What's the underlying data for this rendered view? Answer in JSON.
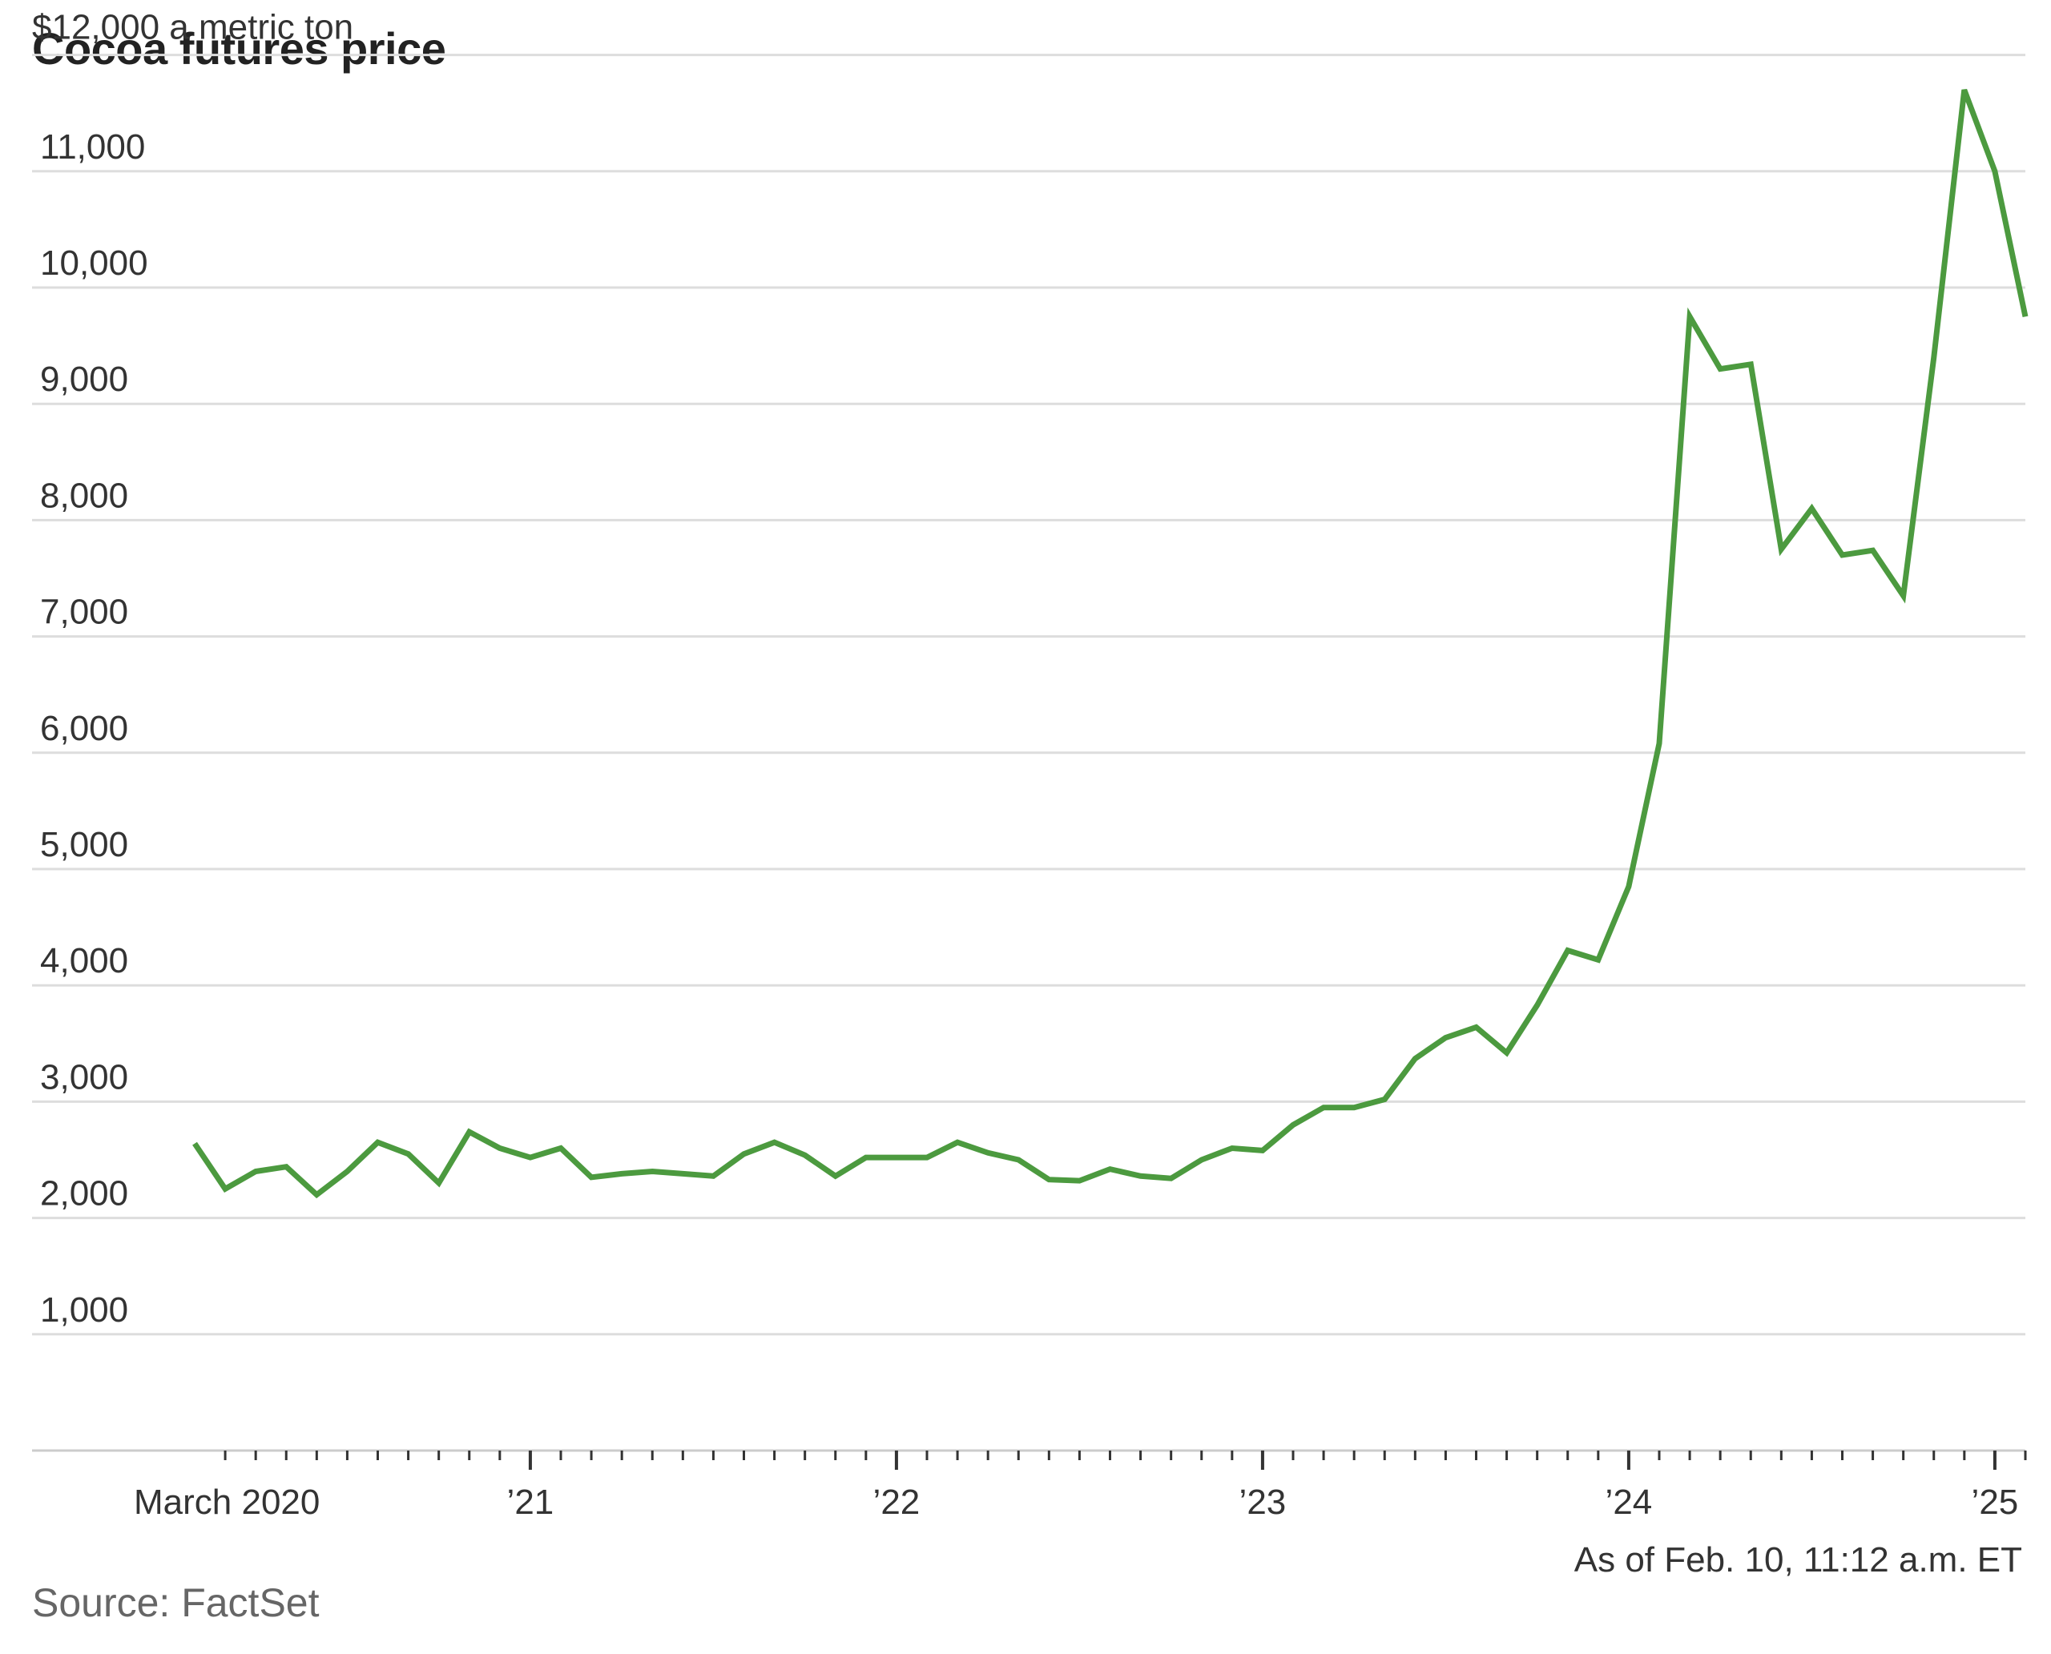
{
  "chart_data": {
    "type": "line",
    "title": "Cocoa futures price",
    "ylabel_unit_text": "$12,000 a metric ton",
    "note": "As of Feb. 10, 11:12 a.m. ET",
    "source": "Source: FactSet",
    "ylim": [
      0,
      12000
    ],
    "y_ticks": [
      {
        "value": 12000,
        "label": ""
      },
      {
        "value": 11000,
        "label": "11,000"
      },
      {
        "value": 10000,
        "label": "10,000"
      },
      {
        "value": 9000,
        "label": "9,000"
      },
      {
        "value": 8000,
        "label": "8,000"
      },
      {
        "value": 7000,
        "label": "7,000"
      },
      {
        "value": 6000,
        "label": "6,000"
      },
      {
        "value": 5000,
        "label": "5,000"
      },
      {
        "value": 4000,
        "label": "4,000"
      },
      {
        "value": 3000,
        "label": "3,000"
      },
      {
        "value": 2000,
        "label": "2,000"
      },
      {
        "value": 1000,
        "label": "1,000"
      }
    ],
    "x_range": [
      "2020-02",
      "2025-02"
    ],
    "x_ticks": [
      {
        "date": "2020-03",
        "label": "March 2020",
        "align": "start"
      },
      {
        "date": "2021-01",
        "label": "’21",
        "align": "middle"
      },
      {
        "date": "2022-01",
        "label": "’22",
        "align": "middle"
      },
      {
        "date": "2023-01",
        "label": "’23",
        "align": "middle"
      },
      {
        "date": "2024-01",
        "label": "’24",
        "align": "middle"
      },
      {
        "date": "2025-01",
        "label": "’25",
        "align": "middle"
      }
    ],
    "grid": true,
    "color": "#4c9a3f",
    "series": [
      {
        "points": [
          [
            "2020-02",
            2640
          ],
          [
            "2020-03",
            2250
          ],
          [
            "2020-04",
            2400
          ],
          [
            "2020-05",
            2440
          ],
          [
            "2020-06",
            2200
          ],
          [
            "2020-07",
            2400
          ],
          [
            "2020-08",
            2650
          ],
          [
            "2020-09",
            2550
          ],
          [
            "2020-10",
            2300
          ],
          [
            "2020-11",
            2740
          ],
          [
            "2020-12",
            2600
          ],
          [
            "2021-01",
            2520
          ],
          [
            "2021-02",
            2600
          ],
          [
            "2021-03",
            2350
          ],
          [
            "2021-04",
            2380
          ],
          [
            "2021-05",
            2400
          ],
          [
            "2021-06",
            2380
          ],
          [
            "2021-07",
            2360
          ],
          [
            "2021-08",
            2550
          ],
          [
            "2021-09",
            2650
          ],
          [
            "2021-10",
            2540
          ],
          [
            "2021-11",
            2360
          ],
          [
            "2021-12",
            2520
          ],
          [
            "2022-01",
            2520
          ],
          [
            "2022-02",
            2520
          ],
          [
            "2022-03",
            2650
          ],
          [
            "2022-04",
            2560
          ],
          [
            "2022-05",
            2500
          ],
          [
            "2022-06",
            2330
          ],
          [
            "2022-07",
            2320
          ],
          [
            "2022-08",
            2420
          ],
          [
            "2022-09",
            2360
          ],
          [
            "2022-10",
            2340
          ],
          [
            "2022-11",
            2500
          ],
          [
            "2022-12",
            2600
          ],
          [
            "2023-01",
            2580
          ],
          [
            "2023-02",
            2800
          ],
          [
            "2023-03",
            2950
          ],
          [
            "2023-04",
            2950
          ],
          [
            "2023-05",
            3020
          ],
          [
            "2023-06",
            3370
          ],
          [
            "2023-07",
            3550
          ],
          [
            "2023-08",
            3640
          ],
          [
            "2023-09",
            3420
          ],
          [
            "2023-10",
            3830
          ],
          [
            "2023-11",
            4300
          ],
          [
            "2023-12",
            4220
          ],
          [
            "2024-01",
            4850
          ],
          [
            "2024-02",
            6080
          ],
          [
            "2024-03",
            9750
          ],
          [
            "2024-04",
            9300
          ],
          [
            "2024-05",
            9340
          ],
          [
            "2024-06",
            7750
          ],
          [
            "2024-07",
            8100
          ],
          [
            "2024-08",
            7700
          ],
          [
            "2024-09",
            7740
          ],
          [
            "2024-10",
            7350
          ],
          [
            "2024-11",
            9400
          ],
          [
            "2024-12",
            11700
          ],
          [
            "2025-01",
            11000
          ],
          [
            "2025-02",
            9750
          ]
        ]
      }
    ]
  }
}
